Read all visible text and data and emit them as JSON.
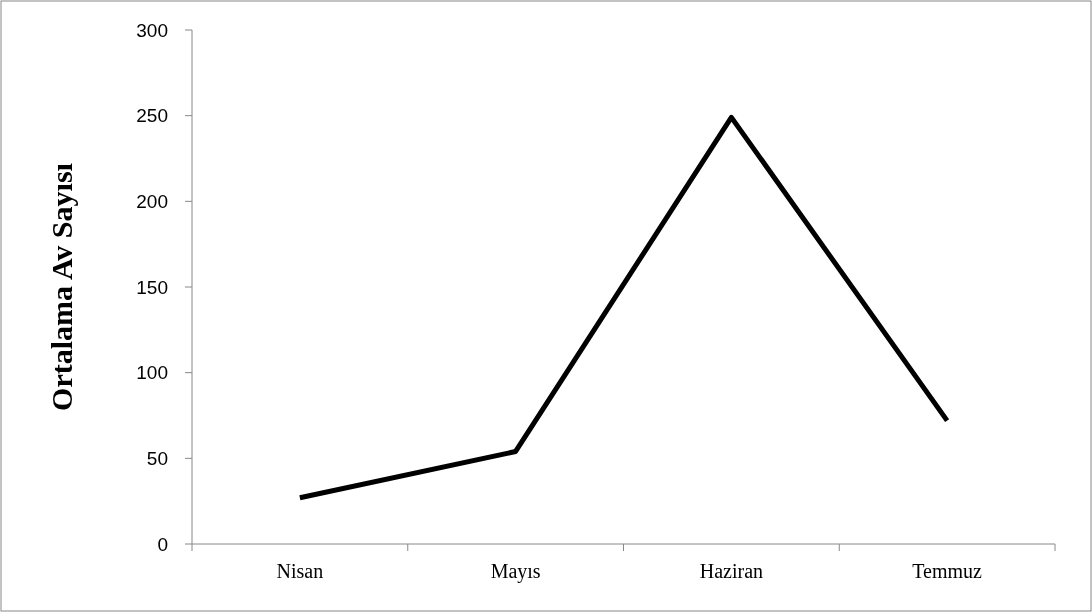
{
  "chart_data": {
    "type": "line",
    "ylabel": "Ortalama Av Sayısı",
    "categories": [
      "Nisan",
      "Mayıs",
      "Haziran",
      "Temmuz"
    ],
    "series": [
      {
        "color": "#000000",
        "values": [
          27,
          54,
          249,
          72
        ]
      }
    ],
    "ylim": [
      0,
      300
    ],
    "yticks": [
      0,
      50,
      100,
      150,
      200,
      250,
      300
    ],
    "grid": false,
    "marker": "none",
    "line_style": "solid"
  }
}
